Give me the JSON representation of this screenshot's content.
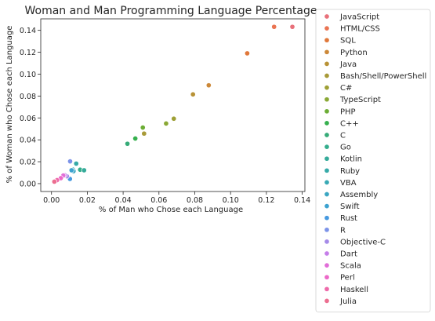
{
  "chart_data": {
    "type": "scatter",
    "title": "Woman and Man Programming Language Percentage",
    "xlabel": "% of Man who Chose each Language",
    "ylabel": "% of Woman who Chose each Language",
    "xlim": [
      -0.006,
      0.1415
    ],
    "ylim": [
      -0.0072,
      0.1505
    ],
    "x_ticks": [
      "0.00",
      "0.02",
      "0.04",
      "0.06",
      "0.08",
      "0.10",
      "0.12",
      "0.14"
    ],
    "y_ticks": [
      "0.00",
      "0.02",
      "0.04",
      "0.06",
      "0.08",
      "0.10",
      "0.12",
      "0.14"
    ],
    "grid": false,
    "legend_position": "outside right",
    "series": [
      {
        "name": "JavaScript",
        "color": "#e8707a",
        "x": 0.1345,
        "y": 0.1432
      },
      {
        "name": "HTML/CSS",
        "color": "#ea7452",
        "x": 0.1243,
        "y": 0.1432
      },
      {
        "name": "SQL",
        "color": "#e0783a",
        "x": 0.1093,
        "y": 0.119
      },
      {
        "name": "Python",
        "color": "#cc8838",
        "x": 0.0878,
        "y": 0.0898
      },
      {
        "name": "Java",
        "color": "#b89236",
        "x": 0.079,
        "y": 0.0815
      },
      {
        "name": "Bash/Shell/PowerShell",
        "color": "#a89a38",
        "x": 0.0517,
        "y": 0.0457
      },
      {
        "name": "C#",
        "color": "#9ea035",
        "x": 0.0683,
        "y": 0.0593
      },
      {
        "name": "TypeScript",
        "color": "#8aa835",
        "x": 0.064,
        "y": 0.0549
      },
      {
        "name": "PHP",
        "color": "#6cad35",
        "x": 0.051,
        "y": 0.0512
      },
      {
        "name": "C++",
        "color": "#36b04e",
        "x": 0.0468,
        "y": 0.0412
      },
      {
        "name": "C",
        "color": "#36ab78",
        "x": 0.0424,
        "y": 0.0364
      },
      {
        "name": "Go",
        "color": "#34ad8c",
        "x": 0.016,
        "y": 0.0127
      },
      {
        "name": "Kotlin",
        "color": "#35ab9a",
        "x": 0.0182,
        "y": 0.0122
      },
      {
        "name": "Ruby",
        "color": "#36aaa8",
        "x": 0.0138,
        "y": 0.0183
      },
      {
        "name": "VBA",
        "color": "#38a9b4",
        "x": 0.012,
        "y": 0.0128
      },
      {
        "name": "Assembly",
        "color": "#3aa6c2",
        "x": 0.0123,
        "y": 0.0114
      },
      {
        "name": "Swift",
        "color": "#3ca2d0",
        "x": 0.0112,
        "y": 0.0122
      },
      {
        "name": "Rust",
        "color": "#4699e0",
        "x": 0.0103,
        "y": 0.0043
      },
      {
        "name": "R",
        "color": "#7c93e8",
        "x": 0.0104,
        "y": 0.0203
      },
      {
        "name": "Objective-C",
        "color": "#a58ae8",
        "x": 0.0086,
        "y": 0.0067
      },
      {
        "name": "Dart",
        "color": "#c57ee9",
        "x": 0.0074,
        "y": 0.0077
      },
      {
        "name": "Scala",
        "color": "#e16ed8",
        "x": 0.0066,
        "y": 0.0074
      },
      {
        "name": "Perl",
        "color": "#ec68c8",
        "x": 0.0052,
        "y": 0.005
      },
      {
        "name": "Haskell",
        "color": "#ee6aaa",
        "x": 0.0031,
        "y": 0.0032
      },
      {
        "name": "Julia",
        "color": "#ec6e90",
        "x": 0.0016,
        "y": 0.0018
      }
    ]
  }
}
